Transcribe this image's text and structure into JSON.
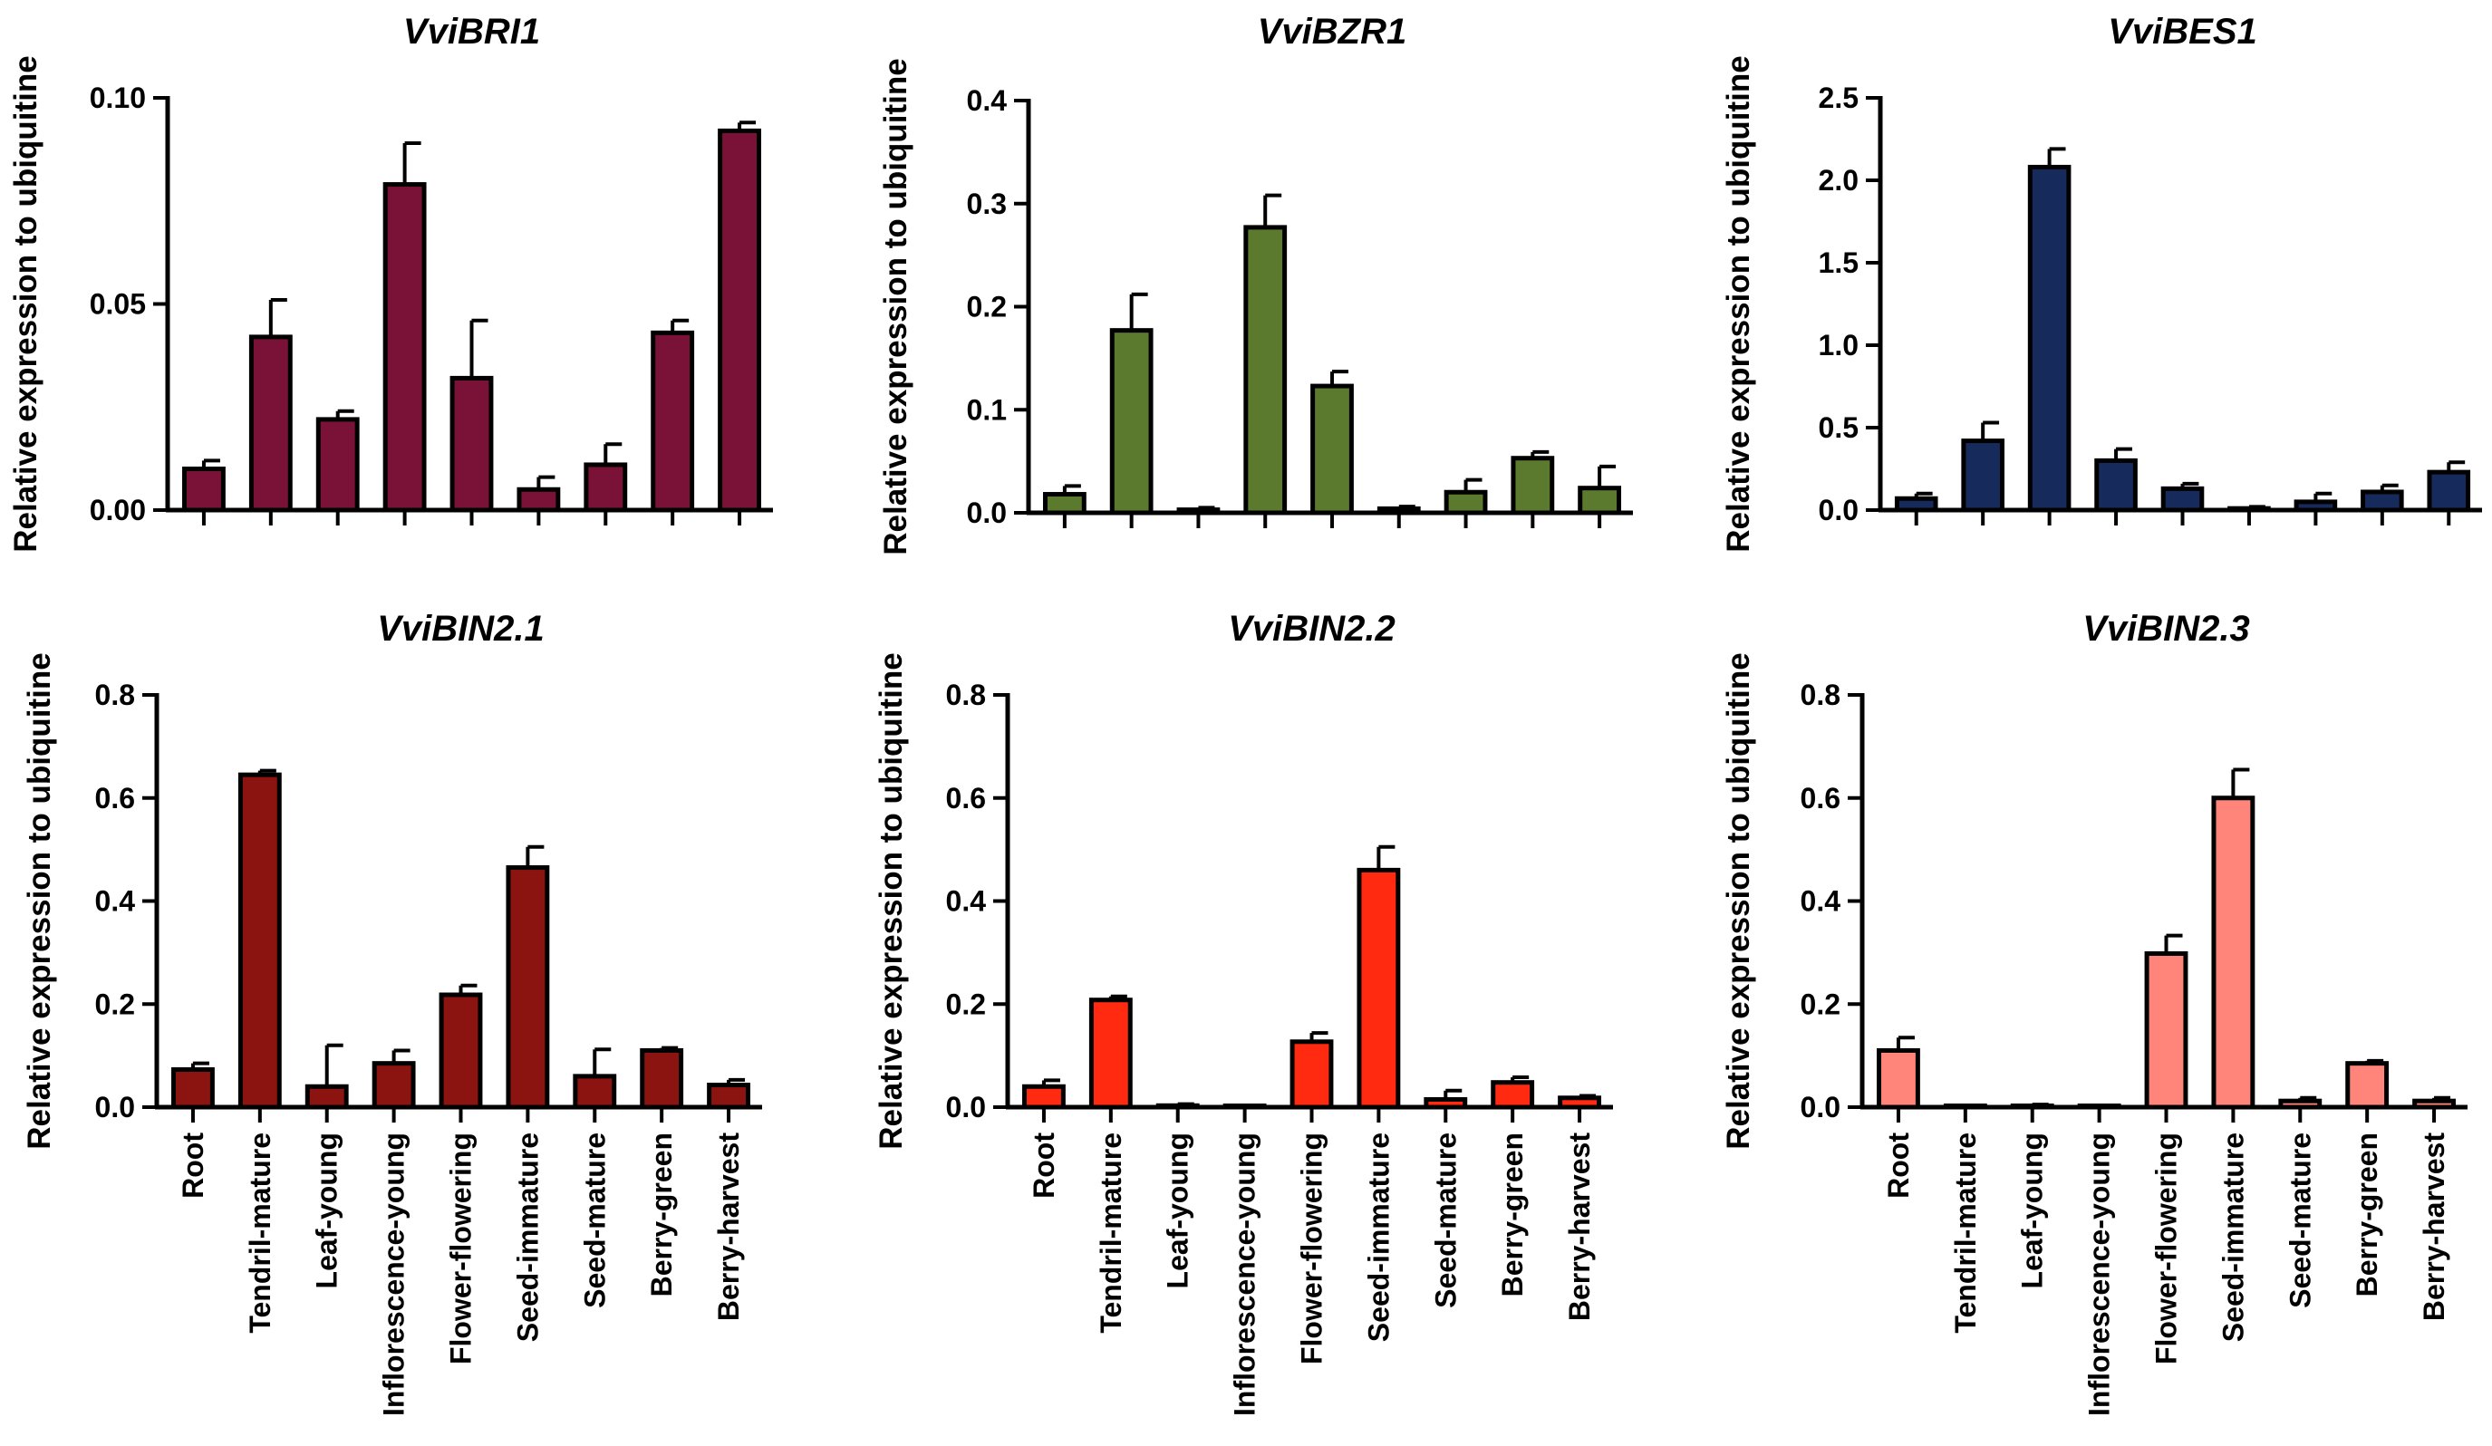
{
  "chart_data": [
    {
      "type": "bar",
      "title": "VviBRI1",
      "ylabel": "Relative expression to ubiquitine",
      "ylim": [
        0,
        0.1
      ],
      "yticks": [
        "0.00",
        "0.05",
        "0.10"
      ],
      "color": "#7a1238",
      "categories": [
        "Root",
        "Tendril-mature",
        "Leaf-young",
        "Inflorescence-young",
        "Flower-flowering",
        "Seed-immature",
        "Seed-mature",
        "Berry-green",
        "Berry-harvest"
      ],
      "values": [
        0.01,
        0.042,
        0.022,
        0.079,
        0.032,
        0.005,
        0.011,
        0.043,
        0.092
      ],
      "errors": [
        0.002,
        0.009,
        0.002,
        0.01,
        0.014,
        0.003,
        0.005,
        0.003,
        0.002
      ]
    },
    {
      "type": "bar",
      "title": "VviBZR1",
      "ylabel": "Relative expression to ubiquitine",
      "ylim": [
        0,
        0.4
      ],
      "yticks": [
        "0.0",
        "0.1",
        "0.2",
        "0.3",
        "0.4"
      ],
      "color": "#5c7a2e",
      "categories": [
        "Root",
        "Tendril-mature",
        "Leaf-young",
        "Inflorescence-young",
        "Flower-flowering",
        "Seed-immature",
        "Seed-mature",
        "Berry-green",
        "Berry-harvest"
      ],
      "values": [
        0.018,
        0.177,
        0.003,
        0.277,
        0.123,
        0.004,
        0.02,
        0.053,
        0.024
      ],
      "errors": [
        0.008,
        0.035,
        0.002,
        0.031,
        0.014,
        0.002,
        0.012,
        0.006,
        0.021
      ]
    },
    {
      "type": "bar",
      "title": "VviBES1",
      "ylabel": "Relative expression to ubiquitine",
      "ylim": [
        0,
        2.5
      ],
      "yticks": [
        "0.0",
        "0.5",
        "1.0",
        "1.5",
        "2.0",
        "2.5"
      ],
      "color": "#172a5c",
      "categories": [
        "Root",
        "Tendril-mature",
        "Leaf-young",
        "Inflorescence-young",
        "Flower-flowering",
        "Seed-immature",
        "Seed-mature",
        "Berry-green",
        "Berry-harvest"
      ],
      "values": [
        0.07,
        0.42,
        2.08,
        0.3,
        0.13,
        0.01,
        0.05,
        0.11,
        0.23
      ],
      "errors": [
        0.03,
        0.11,
        0.11,
        0.07,
        0.03,
        0.01,
        0.05,
        0.04,
        0.06
      ]
    },
    {
      "type": "bar",
      "title": "VviBIN2.1",
      "ylabel": "Relative expression to ubiquitine",
      "ylim": [
        0,
        0.8
      ],
      "yticks": [
        "0.0",
        "0.2",
        "0.4",
        "0.6",
        "0.8"
      ],
      "color": "#8b1410",
      "categories": [
        "Root",
        "Tendril-mature",
        "Leaf-young",
        "Inflorescence-young",
        "Flower-flowering",
        "Seed-immature",
        "Seed-mature",
        "Berry-green",
        "Berry-harvest"
      ],
      "values": [
        0.073,
        0.645,
        0.04,
        0.085,
        0.218,
        0.465,
        0.06,
        0.11,
        0.043
      ],
      "errors": [
        0.012,
        0.008,
        0.08,
        0.025,
        0.018,
        0.04,
        0.052,
        0.005,
        0.01
      ]
    },
    {
      "type": "bar",
      "title": "VviBIN2.2",
      "ylabel": "Relative expression to ubiquitine",
      "ylim": [
        0,
        0.8
      ],
      "yticks": [
        "0.0",
        "0.2",
        "0.4",
        "0.6",
        "0.8"
      ],
      "color": "#ff2a10",
      "categories": [
        "Root",
        "Tendril-mature",
        "Leaf-young",
        "Inflorescence-young",
        "Flower-flowering",
        "Seed-immature",
        "Seed-mature",
        "Berry-green",
        "Berry-harvest"
      ],
      "values": [
        0.04,
        0.208,
        0.003,
        0.001,
        0.127,
        0.46,
        0.015,
        0.048,
        0.018
      ],
      "errors": [
        0.012,
        0.007,
        0.003,
        0.001,
        0.017,
        0.045,
        0.017,
        0.01,
        0.004
      ]
    },
    {
      "type": "bar",
      "title": "VviBIN2.3",
      "ylabel": "Relative expression to ubiquitine",
      "ylim": [
        0,
        0.8
      ],
      "yticks": [
        "0.0",
        "0.2",
        "0.4",
        "0.6",
        "0.8"
      ],
      "color": "#ff857a",
      "categories": [
        "Root",
        "Tendril-mature",
        "Leaf-young",
        "Inflorescence-young",
        "Flower-flowering",
        "Seed-immature",
        "Seed-mature",
        "Berry-green",
        "Berry-harvest"
      ],
      "values": [
        0.11,
        0.001,
        0.002,
        0.001,
        0.298,
        0.6,
        0.012,
        0.085,
        0.012
      ],
      "errors": [
        0.025,
        0.001,
        0.003,
        0.001,
        0.035,
        0.055,
        0.006,
        0.005,
        0.006
      ]
    }
  ]
}
